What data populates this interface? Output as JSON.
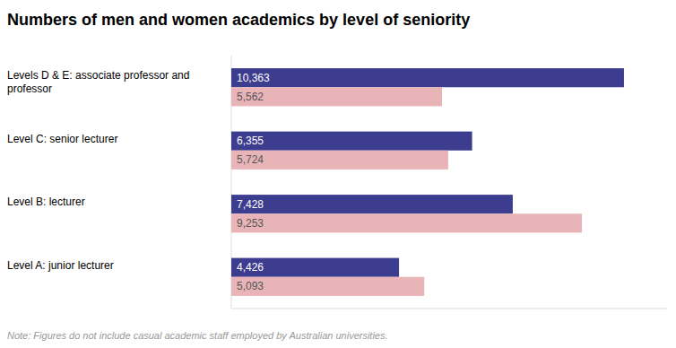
{
  "chart_data": {
    "type": "bar",
    "orientation": "horizontal",
    "title": "Numbers of men and women academics by level of seniority",
    "note": "Note: Figures do not include casual academic staff employed by Australian universities.",
    "categories": [
      "Levels D & E: associate professor and\nprofessor",
      "Level C: senior lecturer",
      "Level B: lecturer",
      "Level A: junior lecturer"
    ],
    "series": [
      {
        "color": "#3d3d8f",
        "values": [
          10363,
          6355,
          7428,
          4426
        ],
        "value_labels": [
          "10,363",
          "6,355",
          "7,428",
          "4,426"
        ]
      },
      {
        "color": "#e8b4b8",
        "values": [
          5562,
          5724,
          9253,
          5093
        ],
        "value_labels": [
          "5,562",
          "5,724",
          "9,253",
          "5,093"
        ]
      }
    ],
    "xlim": [
      0,
      11500
    ],
    "data_labels": true,
    "tick_labels": false,
    "grid": false
  }
}
